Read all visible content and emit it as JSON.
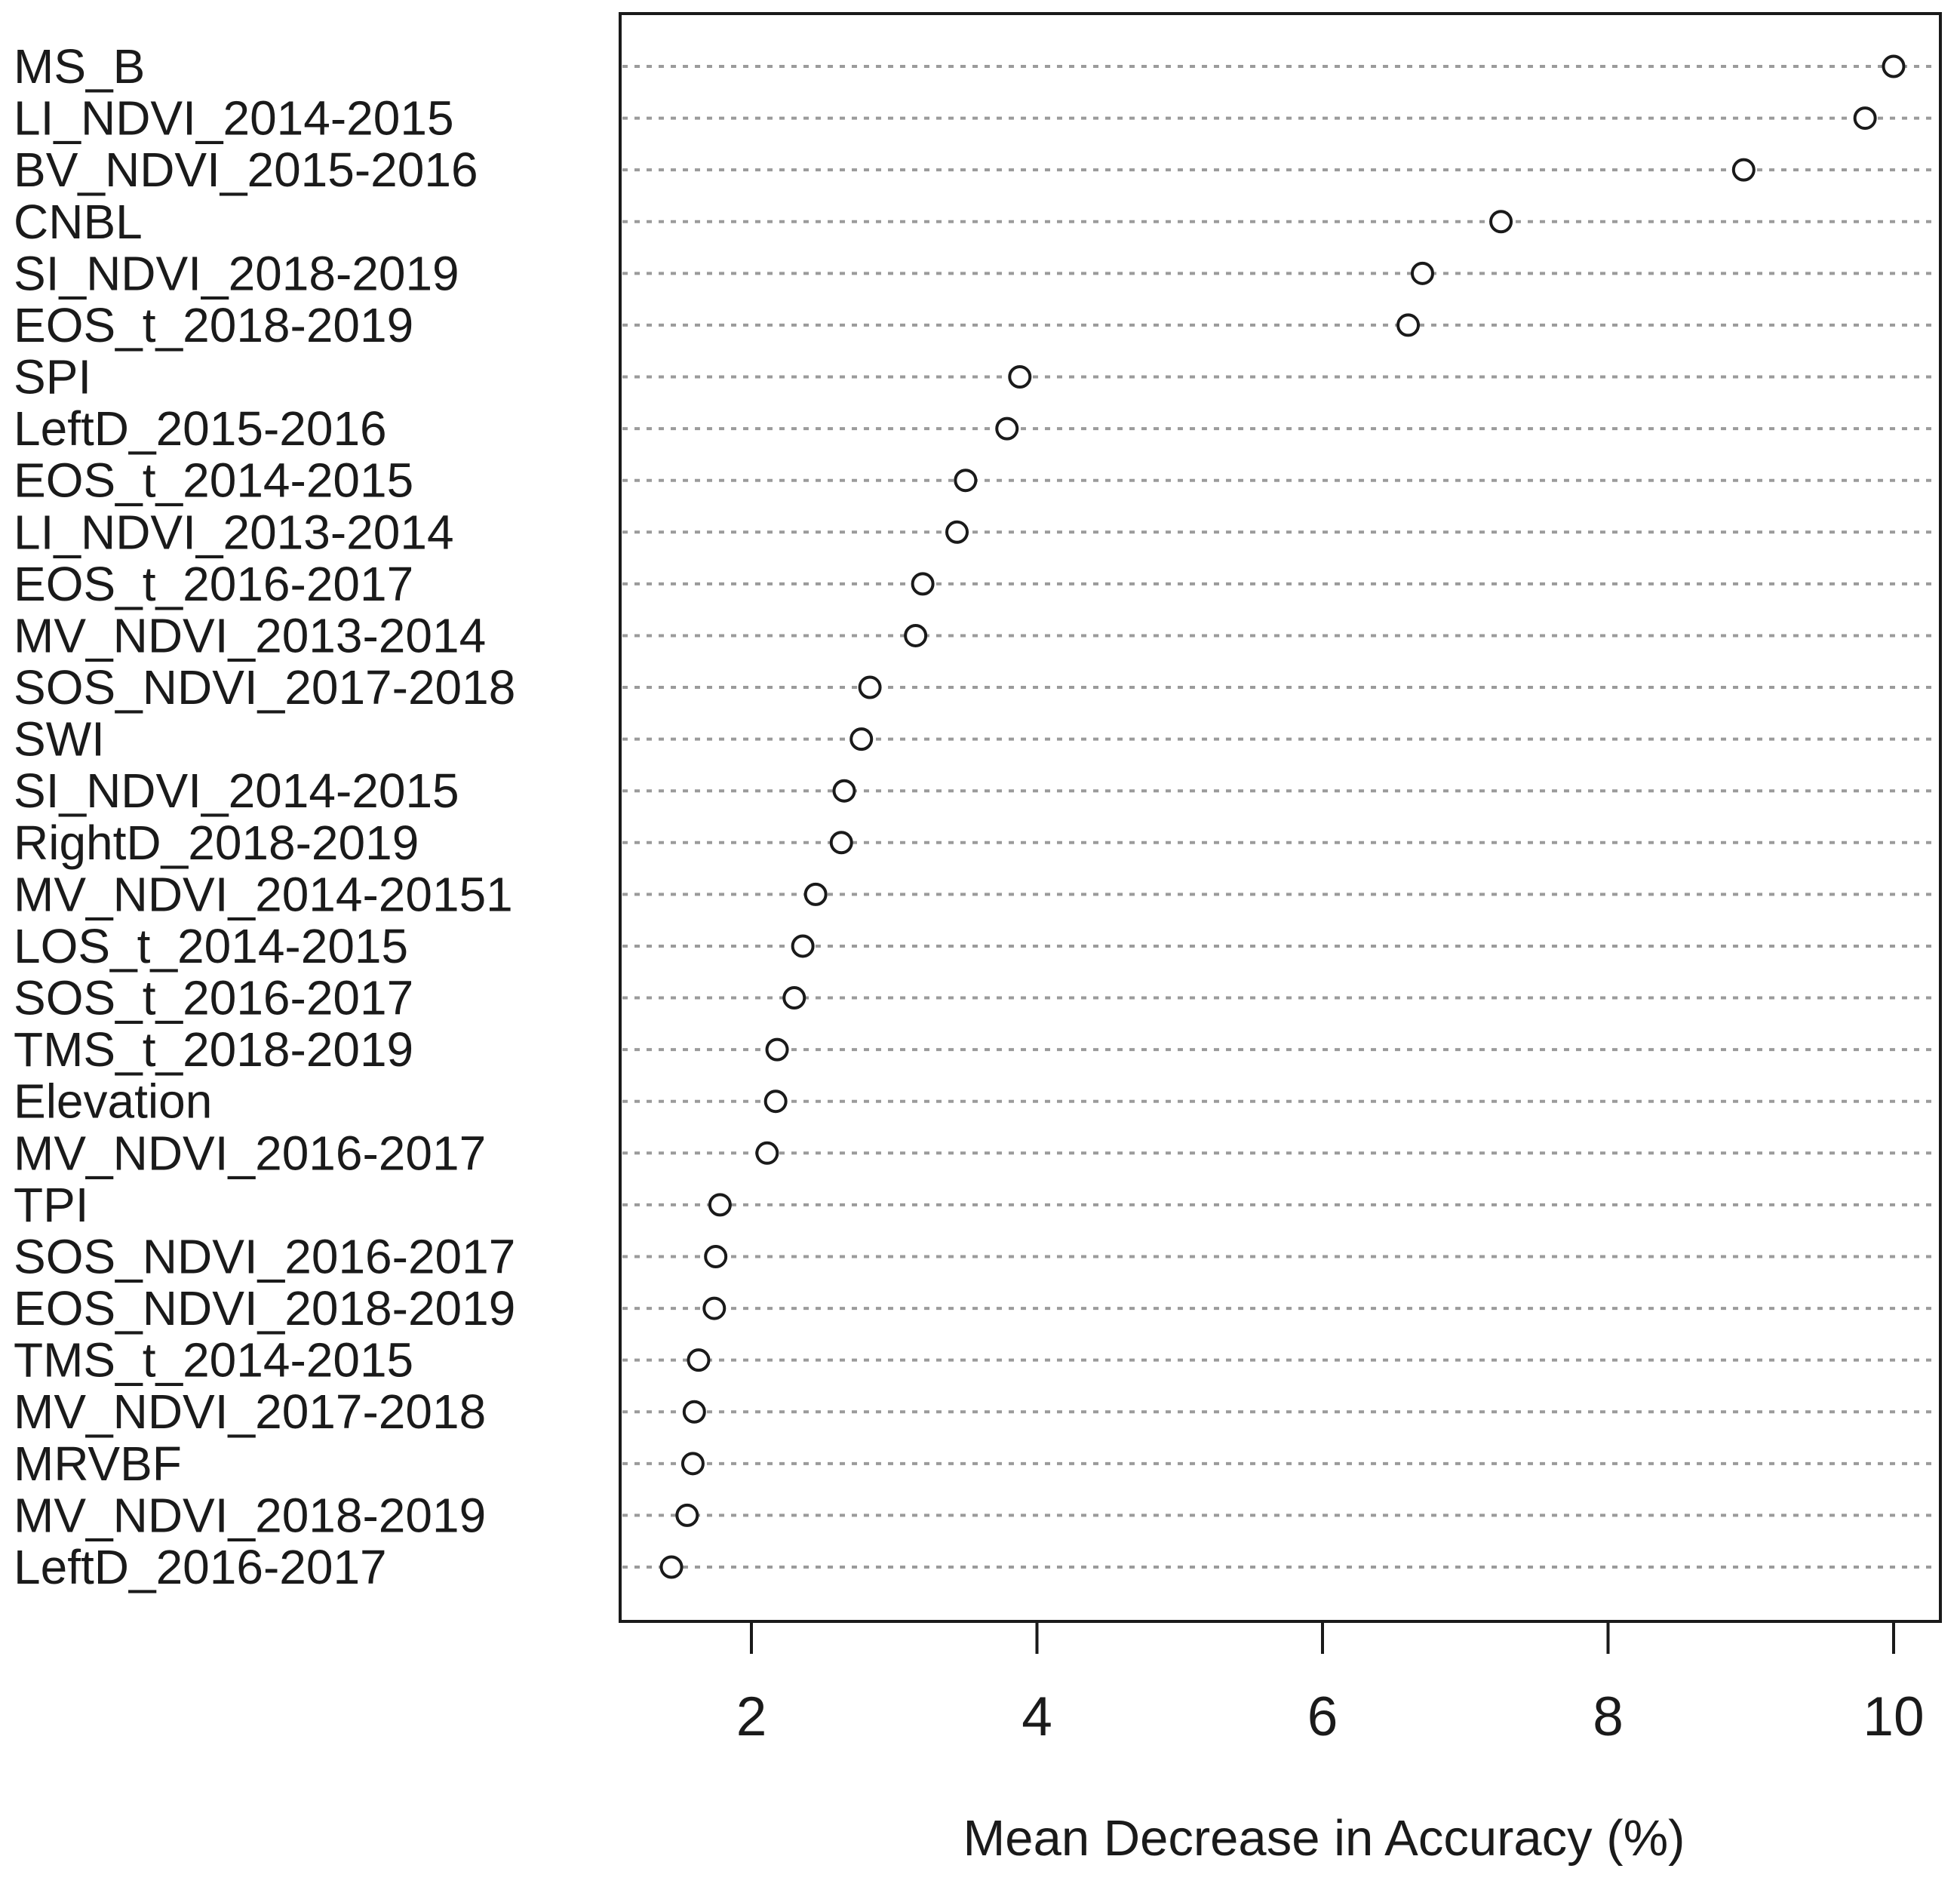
{
  "chart_data": {
    "type": "scatter",
    "subtype": "dotchart-variable-importance",
    "title": "",
    "xlabel": "Mean Decrease in Accuracy  (%)",
    "ylabel": "",
    "xlim": [
      1.08,
      10.33
    ],
    "x_ticks": [
      2,
      4,
      6,
      8,
      10
    ],
    "grid": "horizontal dotted lines, one per category",
    "legend_position": "none",
    "marker": "open-circle",
    "categories": [
      "MS_B",
      "LI_NDVI_2014-2015",
      "BV_NDVI_2015-2016",
      "CNBL",
      "SI_NDVI_2018-2019",
      "EOS_t_2018-2019",
      "SPI",
      "LeftD_2015-2016",
      "EOS_t_2014-2015",
      "LI_NDVI_2013-2014",
      "EOS_t_2016-2017",
      "MV_NDVI_2013-2014",
      "SOS_NDVI_2017-2018",
      "SWI",
      "SI_NDVI_2014-2015",
      "RightD_2018-2019",
      "MV_NDVI_2014-20151",
      "LOS_t_2014-2015",
      "SOS_t_2016-2017",
      "TMS_t_2018-2019",
      "Elevation",
      "MV_NDVI_2016-2017",
      "TPI",
      "SOS_NDVI_2016-2017",
      "EOS_NDVI_2018-2019",
      "TMS_t_2014-2015",
      "MV_NDVI_2017-2018",
      "MRVBF",
      "MV_NDVI_2018-2019",
      "LeftD_2016-2017"
    ],
    "values": [
      10.0,
      9.8,
      8.95,
      7.25,
      6.7,
      6.6,
      3.88,
      3.79,
      3.5,
      3.44,
      3.2,
      3.15,
      2.83,
      2.77,
      2.65,
      2.63,
      2.45,
      2.36,
      2.3,
      2.18,
      2.17,
      2.11,
      1.78,
      1.75,
      1.74,
      1.63,
      1.6,
      1.59,
      1.55,
      1.44
    ]
  },
  "colors": {
    "background": "#ffffff",
    "box_border": "#1a1a1a",
    "grid_line": "#9b9b9b",
    "marker_stroke": "#1a1a1a",
    "marker_fill": "#ffffff",
    "axis_text": "#1a1a1a"
  }
}
